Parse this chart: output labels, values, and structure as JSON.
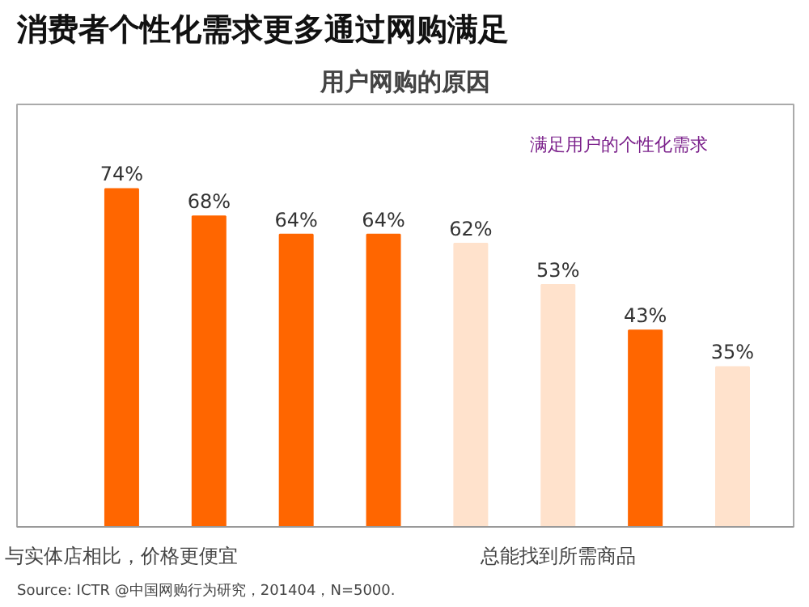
{
  "chart_data": {
    "type": "bar",
    "title": "消费者个性化需求更多通过网购满足",
    "subtitle": "用户网购的原因",
    "categories": [
      "与实体店相比，价格更便宜",
      null,
      null,
      null,
      null,
      "总能找到所需商品",
      null,
      null
    ],
    "values": [
      74,
      68,
      64,
      64,
      62,
      53,
      43,
      35
    ],
    "colors": [
      "#ff6600",
      "#ff6600",
      "#ff6600",
      "#ff6600",
      "#ffe2cc",
      "#ffe2cc",
      "#ff6600",
      "#ffe2cc"
    ],
    "value_labels": [
      "74%",
      "68%",
      "64%",
      "64%",
      "62%",
      "53%",
      "43%",
      "35%"
    ],
    "annotations": [
      "满足用户的个性化需求",
      "Source: ICTR @中国网购行为研究，201404，N=5000."
    ],
    "grid": false
  }
}
